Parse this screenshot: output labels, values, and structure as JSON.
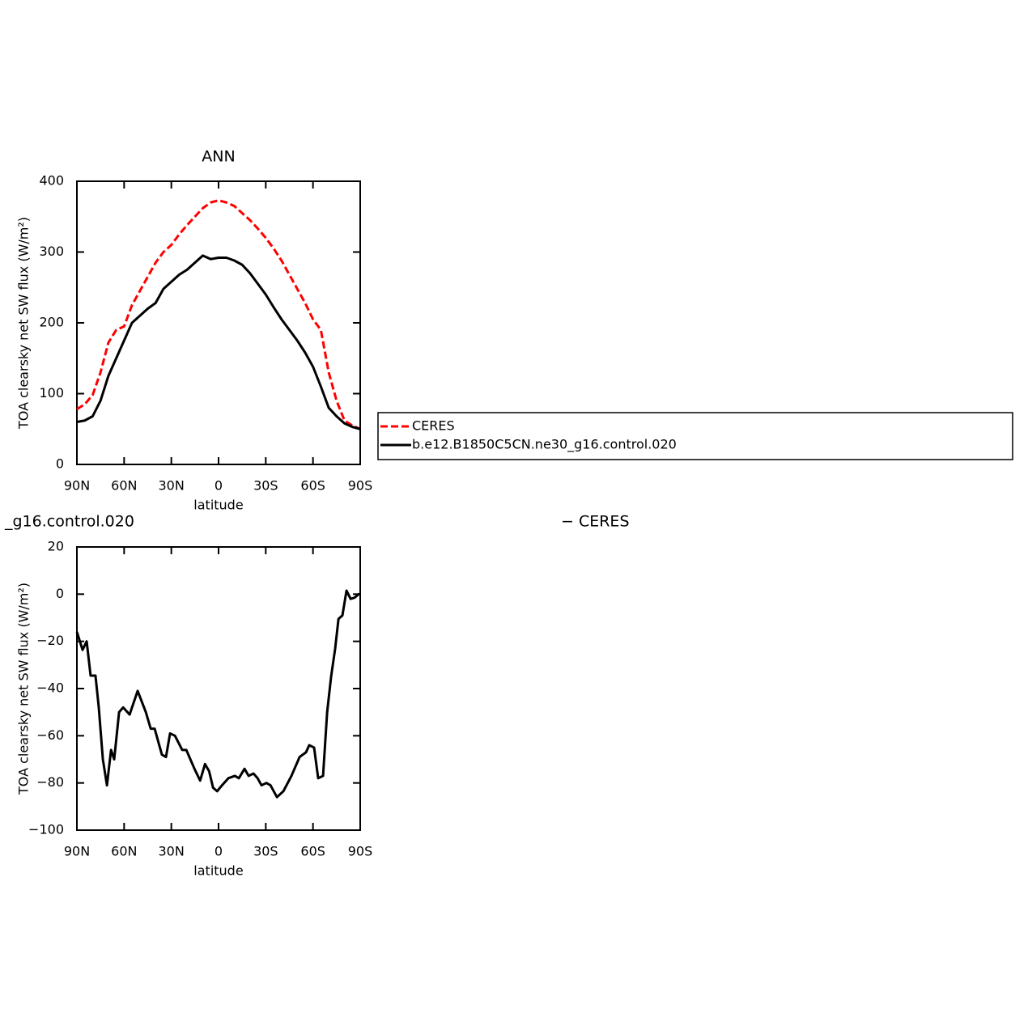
{
  "chart_data": [
    {
      "type": "line",
      "title": "ANN",
      "xlabel": "latitude",
      "ylabel": "TOA clearsky net SW flux (W/m²)",
      "xlim": [
        90,
        -90
      ],
      "ylim": [
        0,
        400
      ],
      "xticks": [
        {
          "value": 90,
          "label": "90N"
        },
        {
          "value": 60,
          "label": "60N"
        },
        {
          "value": 30,
          "label": "30N"
        },
        0,
        {
          "value": -30,
          "label": "30S"
        },
        {
          "value": -60,
          "label": "60S"
        },
        {
          "value": -90,
          "label": "90S"
        }
      ],
      "yticks": [
        0,
        100,
        200,
        300,
        400
      ],
      "x": [
        90,
        85,
        80,
        75,
        70,
        65,
        60,
        55,
        50,
        45,
        40,
        35,
        30,
        25,
        20,
        15,
        10,
        5,
        0,
        -5,
        -10,
        -15,
        -20,
        -25,
        -30,
        -35,
        -40,
        -45,
        -50,
        -55,
        -60,
        -65,
        -70,
        -75,
        -80,
        -85,
        -90
      ],
      "series": [
        {
          "name": "CERES",
          "color": "#ff0000",
          "dashed": true,
          "values": [
            78,
            85,
            98,
            130,
            172,
            190,
            195,
            225,
            245,
            265,
            285,
            300,
            310,
            325,
            338,
            350,
            362,
            370,
            373,
            370,
            365,
            355,
            345,
            333,
            320,
            305,
            288,
            268,
            248,
            228,
            205,
            190,
            130,
            90,
            62,
            55,
            50
          ]
        },
        {
          "name": "b.e12.B1850C5CN.ne30_g16.control.020",
          "color": "#000000",
          "dashed": false,
          "values": [
            60,
            62,
            68,
            90,
            125,
            150,
            175,
            200,
            210,
            220,
            228,
            248,
            258,
            268,
            275,
            285,
            295,
            290,
            292,
            292,
            288,
            282,
            270,
            255,
            240,
            222,
            205,
            190,
            175,
            158,
            138,
            110,
            80,
            68,
            58,
            53,
            50
          ]
        }
      ]
    },
    {
      "type": "line",
      "title_parts": [
        "_g16.control.020",
        "− CERES"
      ],
      "xlabel": "latitude",
      "ylabel": "TOA clearsky net SW flux (W/m²)",
      "xlim": [
        90,
        -90
      ],
      "ylim": [
        -100,
        20
      ],
      "xticks": [
        {
          "value": 90,
          "label": "90N"
        },
        {
          "value": 60,
          "label": "60N"
        },
        {
          "value": 30,
          "label": "30N"
        },
        0,
        {
          "value": -30,
          "label": "30S"
        },
        {
          "value": -60,
          "label": "60S"
        },
        {
          "value": -90,
          "label": "90S"
        }
      ],
      "yticks": [
        {
          "value": -100,
          "label": "−100"
        },
        {
          "value": -80,
          "label": "−80"
        },
        {
          "value": -60,
          "label": "−60"
        },
        {
          "value": -40,
          "label": "−40"
        },
        {
          "value": -20,
          "label": "−20"
        },
        0,
        20
      ],
      "x": [
        90,
        86.4,
        83.8,
        81.3,
        78.2,
        76.1,
        73.5,
        70.9,
        68.3,
        66.3,
        63.2,
        60.6,
        56.5,
        51.4,
        46.2,
        43.1,
        40.6,
        36,
        33.4,
        30.8,
        27.7,
        23.1,
        20.5,
        17.9,
        15.3,
        11.7,
        8.6,
        6,
        3.5,
        0.9,
        -2.2,
        -6.2,
        -10.4,
        -12.9,
        -16.5,
        -19.1,
        -22.2,
        -24.8,
        -27.3,
        -30.4,
        -33,
        -37.1,
        -41.2,
        -46.3,
        -51.5,
        -55.6,
        -57.6,
        -60.7,
        -63.3,
        -66.4,
        -69,
        -71.5,
        -74.1,
        -76.2,
        -78.7,
        -81.3,
        -83.9,
        -86.4,
        -89,
        -90
      ],
      "series": [
        {
          "color": "#000000",
          "dashed": false,
          "values": [
            -16,
            -23.6,
            -20,
            -34.5,
            -34.5,
            -48,
            -70,
            -81,
            -66,
            -70,
            -50,
            -48,
            -51,
            -41,
            -50,
            -57,
            -57,
            -68,
            -69,
            -59,
            -60,
            -66,
            -66,
            -70,
            -74,
            -79,
            -72,
            -75,
            -82,
            -83.5,
            -81,
            -78,
            -77,
            -78,
            -74,
            -77,
            -76,
            -78,
            -81,
            -80,
            -81,
            -86,
            -83.5,
            -77,
            -69,
            -67,
            -64,
            -65,
            -78,
            -77,
            -50,
            -35,
            -23,
            -10.5,
            -9,
            1.5,
            -2,
            -1.5,
            0,
            0
          ]
        }
      ]
    }
  ]
}
